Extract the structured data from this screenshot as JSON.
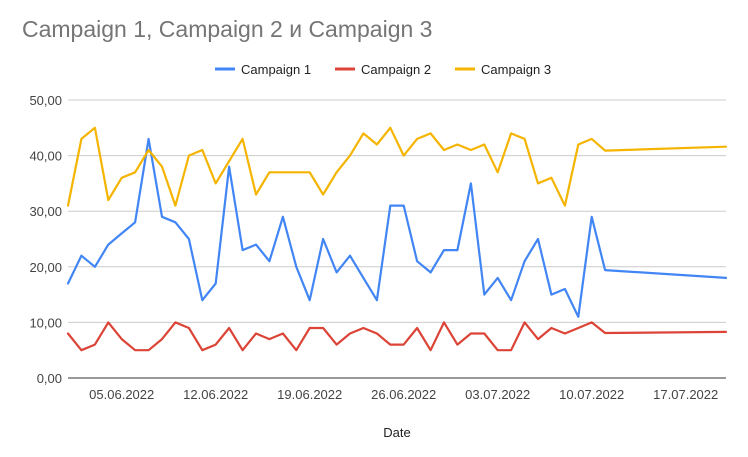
{
  "chart_data": {
    "type": "line",
    "title": "Campaign 1, Campaign 2 и Campaign 3",
    "xlabel": "Date",
    "ylabel": "",
    "ylim": [
      0,
      50
    ],
    "y_ticks": [
      "0,00",
      "10,00",
      "20,00",
      "30,00",
      "40,00",
      "50,00"
    ],
    "x_ticks": [
      {
        "label": "05.06.2022",
        "day": 5
      },
      {
        "label": "12.06.2022",
        "day": 12
      },
      {
        "label": "19.06.2022",
        "day": 19
      },
      {
        "label": "26.06.2022",
        "day": 26
      },
      {
        "label": "03.07.2022",
        "day": 33
      },
      {
        "label": "10.07.2022",
        "day": 40
      },
      {
        "label": "17.07.2022",
        "day": 47
      }
    ],
    "x_range": [
      1,
      50
    ],
    "grid": true,
    "legend_position": "top",
    "x": [
      1,
      2,
      3,
      4,
      5,
      6,
      7,
      8,
      9,
      10,
      11,
      12,
      13,
      14,
      15,
      16,
      17,
      18,
      19,
      20,
      21,
      22,
      23,
      24,
      25,
      26,
      27,
      28,
      29,
      30,
      31,
      32,
      33,
      34,
      35,
      36,
      37,
      38,
      39,
      40,
      41,
      50
    ],
    "series": [
      {
        "name": "Campaign 1",
        "color": "#4285f4",
        "values": [
          17,
          22,
          20,
          24,
          26,
          28,
          43,
          29,
          28,
          25,
          14,
          17,
          38,
          23,
          24,
          21,
          29,
          20,
          14,
          25,
          19,
          22,
          18,
          14,
          31,
          31,
          21,
          19,
          23,
          23,
          35,
          15,
          18,
          14,
          21,
          25,
          15,
          16,
          11,
          29,
          19.4,
          18
        ]
      },
      {
        "name": "Campaign 2",
        "color": "#db4437",
        "values": [
          8,
          5,
          6,
          10,
          7,
          5,
          5,
          7,
          10,
          9,
          5,
          6,
          9,
          5,
          8,
          7,
          8,
          5,
          9,
          9,
          6,
          8,
          9,
          8,
          6,
          6,
          9,
          5,
          10,
          6,
          8,
          8,
          5,
          5,
          10,
          7,
          9,
          8,
          9,
          10,
          8.1,
          8.3
        ]
      },
      {
        "name": "Campaign 3",
        "color": "#f4b400",
        "values": [
          31,
          43,
          45,
          32,
          36,
          37,
          41,
          38,
          31,
          40,
          41,
          35,
          39,
          43,
          33,
          37,
          37,
          37,
          37,
          33,
          37,
          40,
          44,
          42,
          45,
          40,
          43,
          44,
          41,
          42,
          41,
          42,
          37,
          44,
          43,
          35,
          36,
          31,
          42,
          43,
          40.9,
          41.6
        ]
      }
    ]
  }
}
